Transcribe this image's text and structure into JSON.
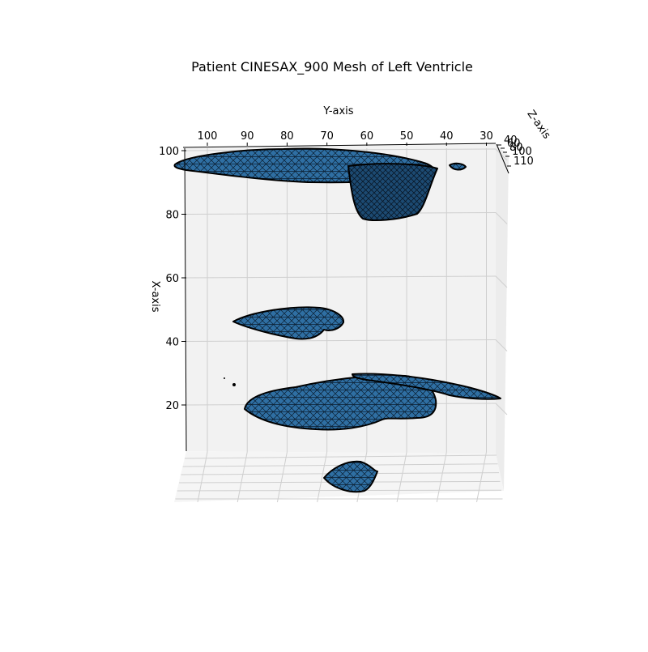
{
  "chart_data": {
    "type": "surface3d",
    "title": "Patient CINESAX_900 Mesh of Left Ventricle",
    "xlabel": "X-axis",
    "ylabel": "Y-axis",
    "zlabel": "Z-axis",
    "x_ticks": [
      20,
      40,
      60,
      80,
      100
    ],
    "y_ticks": [
      100,
      90,
      80,
      70,
      60,
      50,
      40,
      30
    ],
    "z_ticks": [
      40,
      60,
      80,
      100,
      110
    ],
    "grid": true,
    "mesh_color": "#2f6fa3",
    "edge_color": "#000000",
    "pane_color": "#f2f2f2",
    "grid_color": "#cfcfcf"
  }
}
